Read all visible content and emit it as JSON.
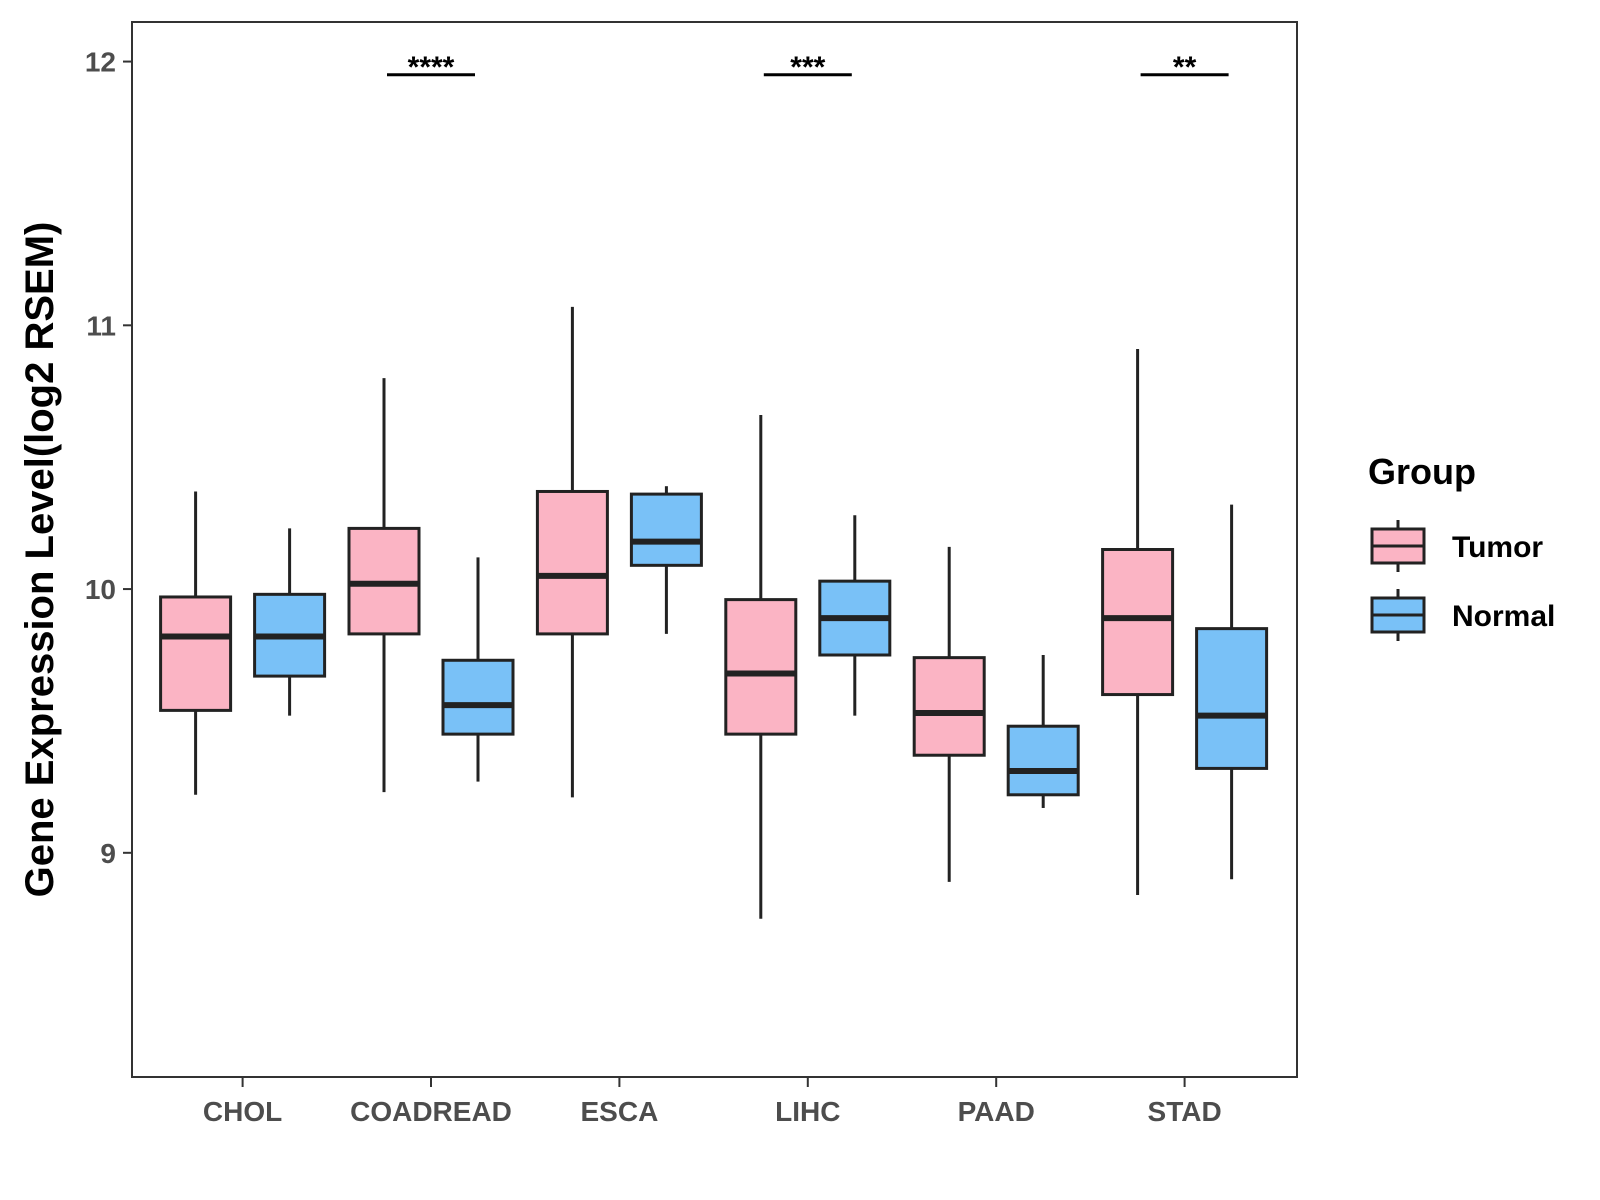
{
  "chart_data": {
    "type": "boxplot",
    "ylabel": "Gene Expression Level(log2 RSEM)",
    "xlabel": "",
    "ylim": [
      8.15,
      12.15
    ],
    "yticks": [
      9,
      10,
      11,
      12
    ],
    "categories": [
      "CHOL",
      "COADREAD",
      "ESCA",
      "LIHC",
      "PAAD",
      "STAD"
    ],
    "legend": {
      "title": "Group",
      "position": "right"
    },
    "series": [
      {
        "name": "Tumor",
        "color": "#FBB4C4",
        "boxes": [
          {
            "whisker_low": 9.22,
            "q1": 9.54,
            "median": 9.82,
            "q3": 9.97,
            "whisker_high": 10.37
          },
          {
            "whisker_low": 9.23,
            "q1": 9.83,
            "median": 10.02,
            "q3": 10.23,
            "whisker_high": 10.8
          },
          {
            "whisker_low": 9.21,
            "q1": 9.83,
            "median": 10.05,
            "q3": 10.37,
            "whisker_high": 11.07
          },
          {
            "whisker_low": 8.75,
            "q1": 9.45,
            "median": 9.68,
            "q3": 9.96,
            "whisker_high": 10.66
          },
          {
            "whisker_low": 8.89,
            "q1": 9.37,
            "median": 9.53,
            "q3": 9.74,
            "whisker_high": 10.16
          },
          {
            "whisker_low": 8.84,
            "q1": 9.6,
            "median": 9.89,
            "q3": 10.15,
            "whisker_high": 10.91
          }
        ]
      },
      {
        "name": "Normal",
        "color": "#79C1F7",
        "boxes": [
          {
            "whisker_low": 9.52,
            "q1": 9.67,
            "median": 9.82,
            "q3": 9.98,
            "whisker_high": 10.23
          },
          {
            "whisker_low": 9.27,
            "q1": 9.45,
            "median": 9.56,
            "q3": 9.73,
            "whisker_high": 10.12
          },
          {
            "whisker_low": 9.83,
            "q1": 10.09,
            "median": 10.18,
            "q3": 10.36,
            "whisker_high": 10.39
          },
          {
            "whisker_low": 9.52,
            "q1": 9.75,
            "median": 9.89,
            "q3": 10.03,
            "whisker_high": 10.28
          },
          {
            "whisker_low": 9.17,
            "q1": 9.22,
            "median": 9.31,
            "q3": 9.48,
            "whisker_high": 9.75
          },
          {
            "whisker_low": 8.9,
            "q1": 9.32,
            "median": 9.52,
            "q3": 9.85,
            "whisker_high": 10.32
          }
        ]
      }
    ],
    "significance": [
      {
        "category": "COADREAD",
        "label": "****",
        "y": 11.95
      },
      {
        "category": "LIHC",
        "label": "***",
        "y": 11.95
      },
      {
        "category": "STAD",
        "label": "**",
        "y": 11.95
      }
    ]
  }
}
